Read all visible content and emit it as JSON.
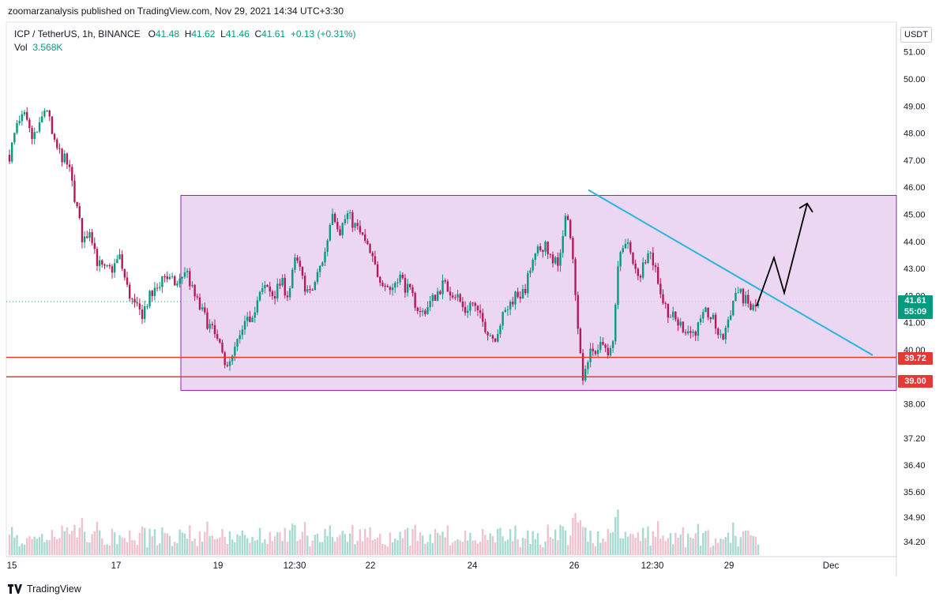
{
  "header": {
    "published_by": "zoomarzanalysis published on TradingView.com, Nov 29, 2021 14:34 UTC+3:30"
  },
  "legend": {
    "symbol": "ICP / TetherUS, 1h, BINANCE",
    "open_label": "O",
    "open": "41.48",
    "high_label": "H",
    "high": "41.62",
    "low_label": "L",
    "low": "41.46",
    "close_label": "C",
    "close": "41.61",
    "change": "+0.13 (+0.31%)",
    "vol_label": "Vol",
    "vol": "3.568K"
  },
  "currency_button": "USDT",
  "last_price": {
    "price": "41.61",
    "countdown": "55:09"
  },
  "levels": [
    {
      "label": "39.72",
      "value": 39.72,
      "color": "#e53935"
    },
    {
      "label": "39.00",
      "value": 39.0,
      "color": "#e53935"
    }
  ],
  "colors": {
    "up": "#089981",
    "down": "#b5195c",
    "box_fill": "#e8d0ee",
    "box_border": "#8e24aa",
    "trendline": "#26b5e0",
    "level": "#e53935"
  },
  "footer": {
    "brand": "TradingView"
  },
  "chart_data": {
    "type": "candlestick",
    "symbol": "ICP / TetherUS",
    "interval": "1h",
    "y_ticks_upper": [
      "51.00",
      "50.00",
      "49.00",
      "48.00",
      "47.00",
      "46.00",
      "45.00",
      "44.00",
      "43.00",
      "42.00",
      "41.00",
      "40.00",
      "38.00"
    ],
    "y_ticks_lower": [
      "37.20",
      "36.40",
      "35.60",
      "34.90",
      "34.20"
    ],
    "x_ticks": [
      "15",
      "17",
      "19",
      "12:30",
      "22",
      "24",
      "26",
      "12:30",
      "29",
      "Dec"
    ],
    "price_path": [
      47.2,
      48.2,
      48.6,
      47.8,
      48.1,
      49.1,
      47.6,
      47.2,
      46.8,
      45.5,
      44.0,
      44.5,
      43.2,
      42.9,
      43.0,
      43.4,
      42.3,
      41.6,
      41.3,
      41.9,
      42.2,
      42.8,
      42.5,
      42.4,
      43.0,
      42.1,
      41.5,
      41.0,
      40.5,
      39.8,
      39.4,
      40.2,
      40.8,
      41.3,
      42.0,
      42.3,
      42.0,
      42.5,
      42.0,
      43.4,
      42.5,
      42.0,
      42.8,
      43.6,
      45.2,
      44.4,
      45.0,
      44.6,
      44.2,
      43.6,
      42.9,
      42.5,
      42.2,
      42.8,
      42.3,
      41.9,
      41.3,
      41.6,
      42.0,
      42.4,
      42.2,
      42.0,
      41.4,
      41.8,
      41.2,
      40.8,
      40.4,
      41.1,
      41.6,
      42.1,
      42.0,
      43.0,
      43.6,
      44.0,
      43.1,
      43.4,
      45.2,
      42.6,
      39.0,
      39.8,
      40.0,
      40.2,
      39.8,
      43.2,
      44.2,
      43.0,
      42.8,
      43.8,
      43.0,
      41.8,
      41.3,
      41.0,
      40.8,
      40.6,
      40.9,
      41.4,
      41.0,
      40.3,
      41.2,
      42.2,
      41.9,
      41.5,
      41.61
    ],
    "range_box": {
      "top": 45.7,
      "bottom": 38.5
    },
    "trendline": {
      "from": 45.9,
      "to": 39.8
    },
    "projection": [
      41.61,
      43.4,
      42.1,
      45.4
    ],
    "volume": "histogram (unlabeled)"
  }
}
